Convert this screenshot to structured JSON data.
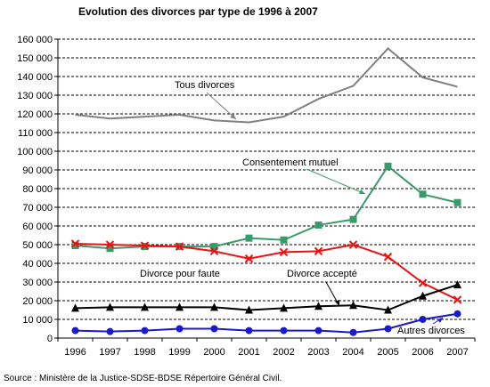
{
  "chart_data": {
    "type": "line",
    "title": "Evolution des divorces par type de 1996 à 2007",
    "xlabel": "",
    "ylabel": "",
    "ylim": [
      0,
      160000
    ],
    "yticks": [
      0,
      10000,
      20000,
      30000,
      40000,
      50000,
      60000,
      70000,
      80000,
      90000,
      100000,
      110000,
      120000,
      130000,
      140000,
      150000,
      160000
    ],
    "ytick_labels": [
      "0",
      "10 000",
      "20 000",
      "30 000",
      "40 000",
      "50 000",
      "60 000",
      "70 000",
      "80 000",
      "90 000",
      "100 000",
      "110 000",
      "120 000",
      "130 000",
      "140 000",
      "150 000",
      "160 000"
    ],
    "categories": [
      "1996",
      "1997",
      "1998",
      "1999",
      "2000",
      "2001",
      "2002",
      "2003",
      "2004",
      "2005",
      "2006",
      "2007"
    ],
    "grid": "horizontal dashed",
    "legend": "none (inline annotations)",
    "series": [
      {
        "name": "Tous divorces",
        "color": "#808080",
        "marker": "none",
        "values": [
          119500,
          117500,
          118500,
          119500,
          116500,
          115500,
          118500,
          128000,
          135000,
          155000,
          139500,
          134500
        ]
      },
      {
        "name": "Consentement mutuel",
        "color": "#3a9a6a",
        "marker": "square",
        "values": [
          49500,
          48000,
          49000,
          49000,
          49000,
          53500,
          52500,
          60500,
          63500,
          92000,
          77000,
          72500
        ]
      },
      {
        "name": "Divorce pour faute",
        "color": "#ee1111",
        "marker": "x",
        "values": [
          50500,
          50000,
          49500,
          49000,
          46500,
          42500,
          46000,
          46500,
          50000,
          43500,
          29500,
          20500
        ]
      },
      {
        "name": "Divorce accepté",
        "color": "#000000",
        "marker": "triangle",
        "values": [
          16000,
          16500,
          16500,
          16500,
          16500,
          15000,
          16000,
          17000,
          17500,
          15000,
          22500,
          28500
        ]
      },
      {
        "name": "Autres divorces",
        "color": "#1a1acc",
        "marker": "circle",
        "values": [
          4000,
          3500,
          4000,
          5000,
          5000,
          4000,
          4000,
          4000,
          3000,
          5000,
          10000,
          13000
        ]
      }
    ],
    "annotations": [
      {
        "text": "Tous divorces",
        "series": "Tous divorces"
      },
      {
        "text": "Consentement mutuel",
        "series": "Consentement mutuel"
      },
      {
        "text": "Divorce pour faute",
        "series": "Divorce pour faute"
      },
      {
        "text": "Divorce accepté",
        "series": "Divorce accepté"
      },
      {
        "text": "Autres divorces",
        "series": "Autres divorces"
      }
    ]
  },
  "source": "Source : Ministère de la Justice-SDSE-BDSE Répertoire Général Civil."
}
